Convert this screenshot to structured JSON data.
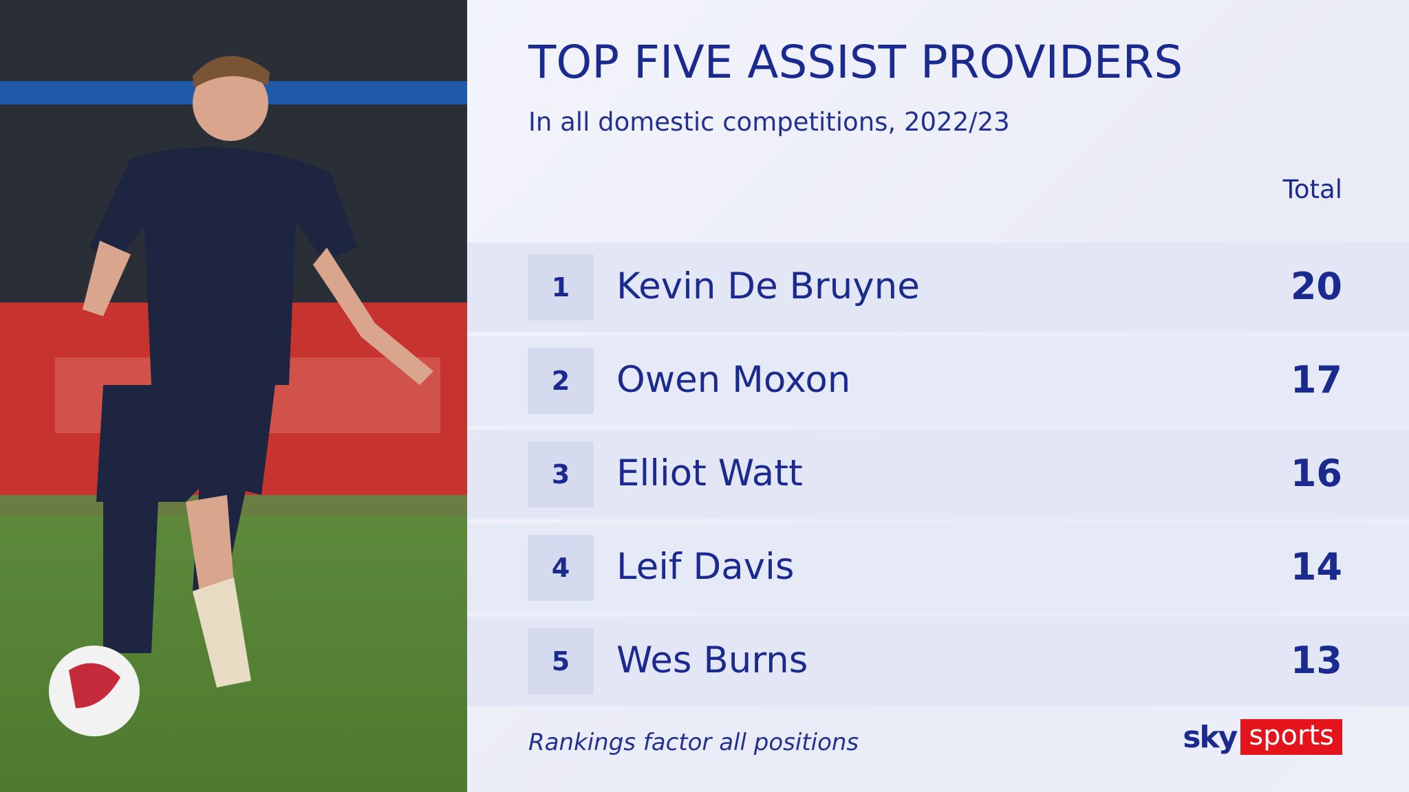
{
  "header": {
    "title": "TOP FIVE ASSIST PROVIDERS",
    "subtitle": "In all domestic competitions, 2022/23"
  },
  "table": {
    "column_header": "Total",
    "rows": [
      {
        "rank": 1,
        "name": "Kevin De Bruyne",
        "total": 20
      },
      {
        "rank": 2,
        "name": "Owen Moxon",
        "total": 17
      },
      {
        "rank": 3,
        "name": "Elliot Watt",
        "total": 16
      },
      {
        "rank": 4,
        "name": "Leif Davis",
        "total": 14
      },
      {
        "rank": 5,
        "name": "Wes Burns",
        "total": 13
      }
    ]
  },
  "footer": {
    "note": "Rankings factor all positions"
  },
  "logo": {
    "sky": "sky",
    "sports": "sports"
  }
}
